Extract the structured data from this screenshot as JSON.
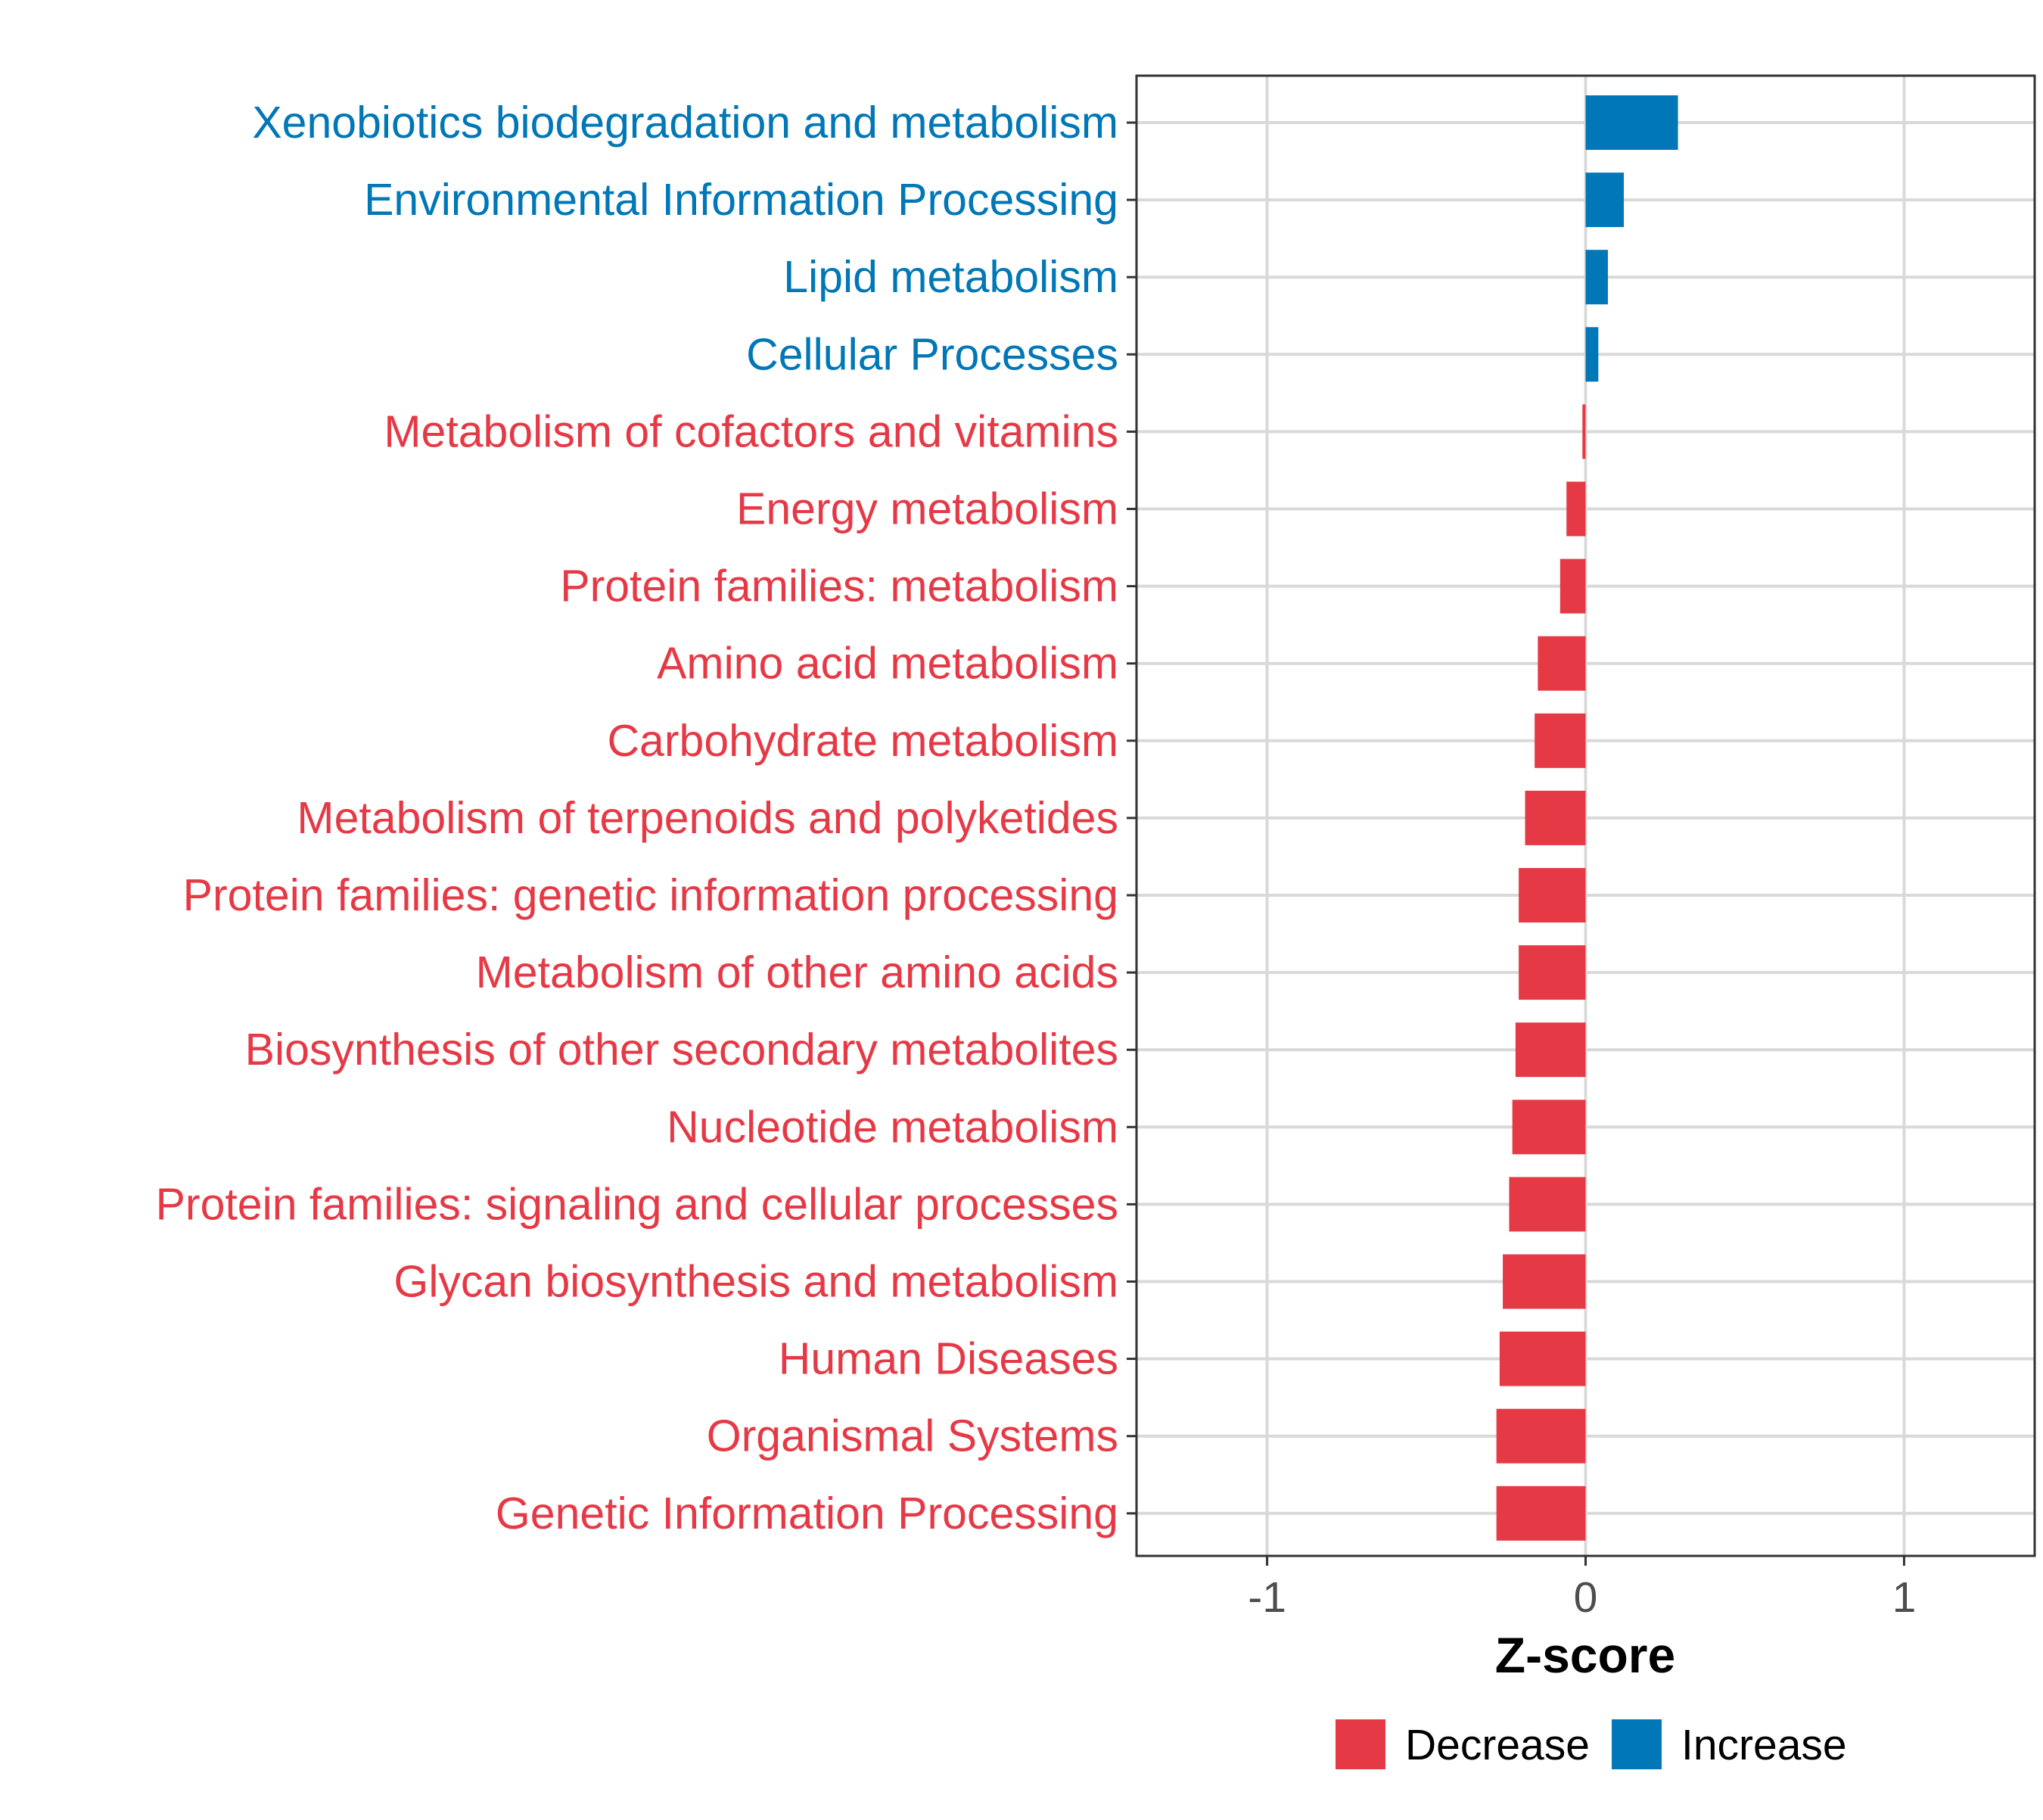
{
  "chart_data": {
    "type": "bar",
    "orientation": "horizontal",
    "categories": [
      "Xenobiotics biodegradation and metabolism",
      "Environmental Information Processing",
      "Lipid metabolism",
      "Cellular Processes",
      "Metabolism of cofactors and vitamins",
      "Energy metabolism",
      "Protein families: metabolism",
      "Amino acid metabolism",
      "Carbohydrate metabolism",
      "Metabolism of terpenoids and polyketides",
      "Protein families: genetic information processing",
      "Metabolism of other amino acids",
      "Biosynthesis of other secondary metabolites",
      "Nucleotide metabolism",
      "Protein families: signaling and cellular processes",
      "Glycan biosynthesis and metabolism",
      "Human Diseases",
      "Organismal Systems",
      "Genetic Information Processing"
    ],
    "values": [
      0.29,
      0.12,
      0.07,
      0.04,
      -0.01,
      -0.06,
      -0.08,
      -0.15,
      -0.16,
      -0.19,
      -0.21,
      -0.21,
      -0.22,
      -0.23,
      -0.24,
      -0.26,
      -0.27,
      -0.28,
      -0.28
    ],
    "groups": [
      "Increase",
      "Increase",
      "Increase",
      "Increase",
      "Decrease",
      "Decrease",
      "Decrease",
      "Decrease",
      "Decrease",
      "Decrease",
      "Decrease",
      "Decrease",
      "Decrease",
      "Decrease",
      "Decrease",
      "Decrease",
      "Decrease",
      "Decrease",
      "Decrease"
    ],
    "title": "",
    "xlabel": "Z-score",
    "ylabel": "",
    "xlim": [
      -1.41,
      1.41
    ],
    "xticks": [
      -1,
      0,
      1
    ],
    "xtick_labels": [
      "-1",
      "0",
      "1"
    ],
    "grid": true,
    "legend": {
      "position": "bottom",
      "entries": [
        {
          "label": "Decrease",
          "color": "#E63946"
        },
        {
          "label": "Increase",
          "color": "#0077B6"
        }
      ]
    },
    "colors": {
      "Decrease": "#E63946",
      "Increase": "#0077B6",
      "grid": "#D9D9D9",
      "axis": "#333333",
      "tick_label": "#4D4D4D"
    }
  }
}
